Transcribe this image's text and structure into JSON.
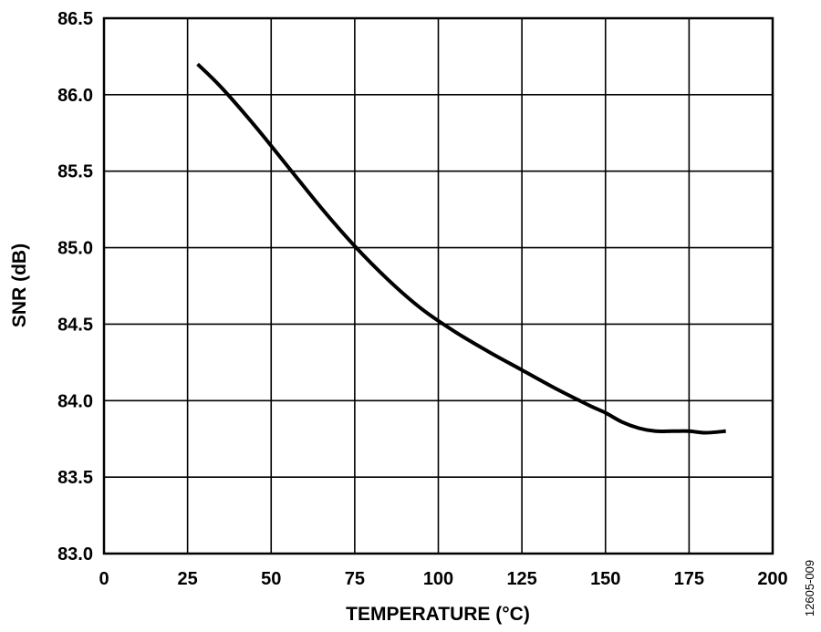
{
  "chart_data": {
    "type": "line",
    "title": "",
    "xlabel": "TEMPERATURE (°C)",
    "ylabel": "SNR (dB)",
    "xlim": [
      0,
      200
    ],
    "ylim": [
      83.0,
      86.5
    ],
    "xticks": [
      0,
      25,
      50,
      75,
      100,
      125,
      150,
      175,
      200
    ],
    "xtick_labels": [
      "0",
      "25",
      "50",
      "75",
      "100",
      "125",
      "150",
      "175",
      "200"
    ],
    "yticks": [
      83.0,
      83.5,
      84.0,
      84.5,
      85.0,
      85.5,
      86.0,
      86.5
    ],
    "ytick_labels": [
      "83.0",
      "83.5",
      "84.0",
      "84.5",
      "85.0",
      "85.5",
      "86.0",
      "86.5"
    ],
    "grid": true,
    "series": [
      {
        "name": "SNR",
        "x": [
          28,
          35,
          45,
          55,
          65,
          75,
          85,
          95,
          105,
          115,
          125,
          135,
          145,
          150,
          155,
          160,
          165,
          170,
          175,
          180,
          186
        ],
        "y": [
          86.2,
          86.05,
          85.8,
          85.53,
          85.26,
          85.01,
          84.79,
          84.6,
          84.45,
          84.32,
          84.2,
          84.08,
          83.97,
          83.92,
          83.86,
          83.82,
          83.8,
          83.8,
          83.8,
          83.79,
          83.8
        ]
      }
    ],
    "figure_id": "12605-009"
  },
  "colors": {
    "line": "#000000",
    "grid": "#000000",
    "background": "#ffffff"
  }
}
